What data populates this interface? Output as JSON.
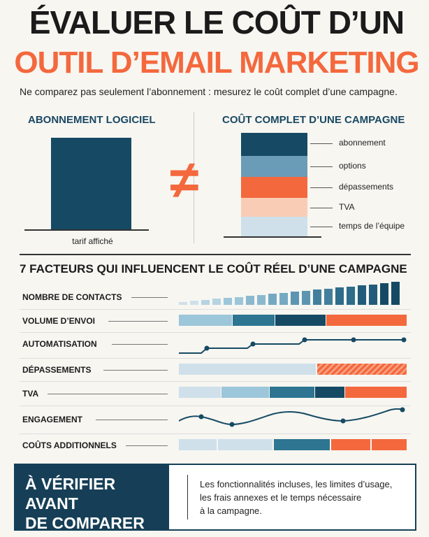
{
  "title_line1": "ÉVALUER LE COÛT D’UN",
  "title_line2": "OUTIL D’EMAIL MARKETING",
  "subtitle": "Ne comparez pas seulement l’abonnement : mesurez le coût complet d’une campagne.",
  "left_panel": {
    "heading": "ABONNEMENT LOGICIEL",
    "bar_label": "tarif affiché"
  },
  "not_equal_symbol": "≠",
  "right_panel": {
    "heading": "COÛT COMPLET D’UNE CAMPAGNE",
    "segments": [
      {
        "label": "abonnement",
        "color": "#164a64"
      },
      {
        "label": "options",
        "color": "#6a9cb7"
      },
      {
        "label": "dépassements",
        "color": "#f4683d"
      },
      {
        "label": "TVA",
        "color": "#f9cdb5"
      },
      {
        "label": "temps de l’équipe",
        "color": "#cfe0ea"
      }
    ]
  },
  "factors": {
    "title": "7 FACTEURS QUI INFLUENCENT LE COÛT RÉEL D’UNE CAMPAGNE",
    "items": [
      {
        "label": "NOMBRE DE CONTACTS"
      },
      {
        "label": "VOLUME D’ENVOI"
      },
      {
        "label": "AUTOMATISATION"
      },
      {
        "label": "DÉPASSEMENTS"
      },
      {
        "label": "TVA"
      },
      {
        "label": "ENGAGEMENT"
      },
      {
        "label": "COÛTS ADDITIONNELS"
      }
    ]
  },
  "checklist_box": {
    "title_line1": "À VÉRIFIER AVANT",
    "title_line2": "DE COMPARER",
    "text_line1": "Les fonctionnalités incluses, les limites d’usage,",
    "text_line2": "les frais annexes et le temps nécessaire",
    "text_line3": "à la campagne."
  },
  "colors": {
    "navy": "#164a64",
    "mid_blue": "#2d7591",
    "light_blue": "#9cc6d9",
    "orange": "#f4683d",
    "peach": "#f9cdb5"
  }
}
